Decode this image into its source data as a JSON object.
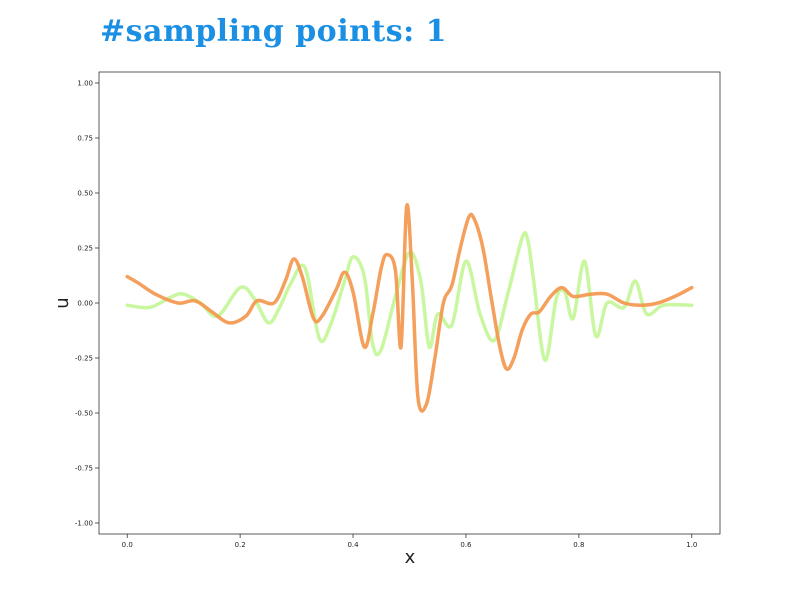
{
  "chart_data": {
    "type": "line",
    "title": "#sampling points: 1",
    "xlabel": "x",
    "ylabel": "u",
    "xlim": [
      -0.05,
      1.05
    ],
    "ylim": [
      -1.05,
      1.05
    ],
    "xticks": [
      "0.0",
      "0.2",
      "0.4",
      "0.6",
      "0.8",
      "1.0"
    ],
    "xtick_values": [
      0.0,
      0.2,
      0.4,
      0.6,
      0.8,
      1.0
    ],
    "yticks": [
      "1.00",
      "0.75",
      "0.50",
      "0.25",
      "0.00",
      "-0.25",
      "-0.50",
      "-0.75",
      "-1.00"
    ],
    "ytick_values": [
      1.0,
      0.75,
      0.5,
      0.25,
      0.0,
      -0.25,
      -0.5,
      -0.75,
      -1.0
    ],
    "grid": false,
    "series": [
      {
        "color": "#c8f7a0",
        "x": [
          0.0,
          0.04,
          0.08,
          0.1,
          0.13,
          0.16,
          0.2,
          0.225,
          0.25,
          0.27,
          0.29,
          0.315,
          0.34,
          0.36,
          0.385,
          0.4,
          0.42,
          0.435,
          0.45,
          0.475,
          0.5,
          0.52,
          0.535,
          0.55,
          0.575,
          0.6,
          0.625,
          0.65,
          0.675,
          0.7,
          0.71,
          0.72,
          0.74,
          0.76,
          0.775,
          0.79,
          0.81,
          0.83,
          0.85,
          0.88,
          0.9,
          0.92,
          0.95,
          1.0
        ],
        "y": [
          -0.01,
          -0.02,
          0.03,
          0.04,
          0.0,
          -0.06,
          0.07,
          0.02,
          -0.09,
          -0.02,
          0.09,
          0.16,
          -0.16,
          -0.1,
          0.1,
          0.21,
          0.12,
          -0.19,
          -0.21,
          0.03,
          0.23,
          0.1,
          -0.2,
          -0.05,
          -0.1,
          0.19,
          -0.05,
          -0.17,
          0.05,
          0.3,
          0.28,
          0.1,
          -0.26,
          0.02,
          0.05,
          -0.07,
          0.19,
          -0.15,
          0.0,
          -0.02,
          0.1,
          -0.05,
          -0.01,
          -0.01
        ]
      },
      {
        "color": "#f4954a",
        "x": [
          0.0,
          0.02,
          0.05,
          0.09,
          0.12,
          0.15,
          0.18,
          0.21,
          0.23,
          0.26,
          0.28,
          0.295,
          0.31,
          0.33,
          0.345,
          0.37,
          0.385,
          0.4,
          0.42,
          0.435,
          0.45,
          0.46,
          0.475,
          0.485,
          0.495,
          0.505,
          0.515,
          0.53,
          0.545,
          0.56,
          0.575,
          0.59,
          0.605,
          0.615,
          0.63,
          0.645,
          0.66,
          0.672,
          0.685,
          0.7,
          0.715,
          0.73,
          0.75,
          0.77,
          0.79,
          0.82,
          0.85,
          0.88,
          0.91,
          0.94,
          0.97,
          1.0
        ],
        "y": [
          0.12,
          0.09,
          0.04,
          0.0,
          0.01,
          -0.04,
          -0.09,
          -0.06,
          0.01,
          0.0,
          0.1,
          0.2,
          0.12,
          -0.07,
          -0.06,
          0.06,
          0.14,
          0.05,
          -0.2,
          -0.05,
          0.16,
          0.22,
          0.15,
          -0.2,
          0.44,
          0.1,
          -0.43,
          -0.46,
          -0.25,
          0.0,
          0.08,
          0.25,
          0.39,
          0.38,
          0.25,
          0.02,
          -0.2,
          -0.3,
          -0.25,
          -0.12,
          -0.05,
          -0.04,
          0.03,
          0.07,
          0.03,
          0.04,
          0.04,
          0.0,
          -0.01,
          0.0,
          0.03,
          0.07
        ]
      }
    ]
  }
}
